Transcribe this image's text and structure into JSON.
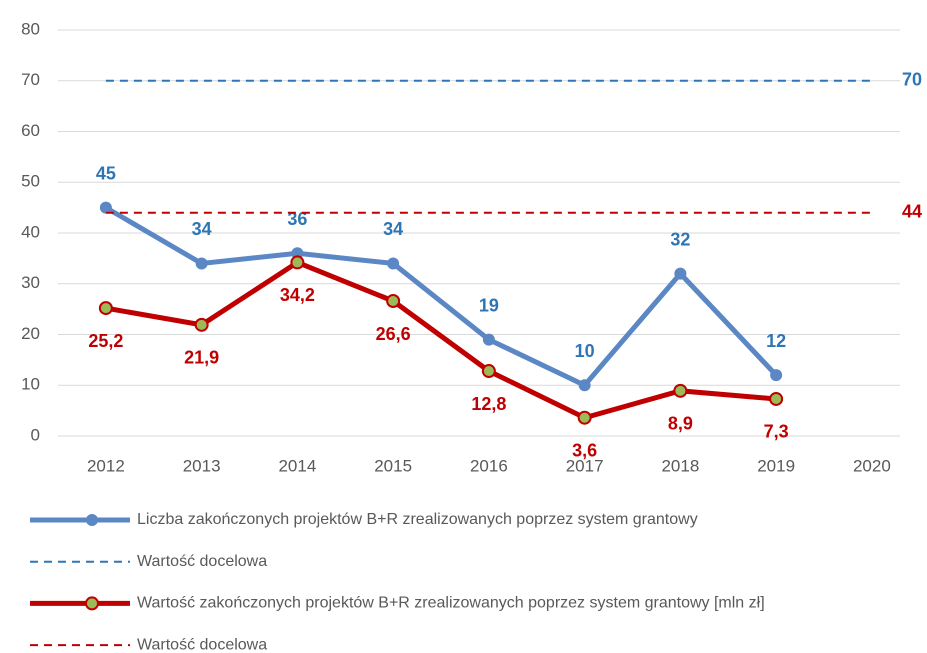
{
  "chart_data": {
    "type": "line",
    "categories": [
      "2012",
      "2013",
      "2014",
      "2015",
      "2016",
      "2017",
      "2018",
      "2019",
      "2020"
    ],
    "ylim": [
      0,
      80
    ],
    "yticks": [
      0,
      10,
      20,
      30,
      40,
      50,
      60,
      70,
      80
    ],
    "grid": true,
    "series": [
      {
        "name": "Liczba zakończonych projektów B+R zrealizowanych poprzez system grantowy",
        "color": "#5b87c5",
        "label_color": "#2e75b6",
        "style": "solid",
        "markers": true,
        "values": [
          45,
          34,
          36,
          34,
          19,
          10,
          32,
          12,
          null
        ]
      },
      {
        "name": "Wartość docelowa",
        "color": "#2e75b6",
        "label_color": "#2e75b6",
        "style": "dashed",
        "markers": false,
        "values": [
          70,
          70,
          70,
          70,
          70,
          70,
          70,
          70,
          70
        ]
      },
      {
        "name": "Wartość zakończonych projektów B+R zrealizowanych poprzez system grantowy [mln zł]",
        "color": "#c00000",
        "label_color": "#c00000",
        "style": "solid",
        "markers": true,
        "marker_fill": "#9bbb59",
        "values": [
          25.2,
          21.9,
          34.2,
          26.6,
          12.8,
          3.6,
          8.9,
          7.3,
          null
        ],
        "value_labels": [
          "25,2",
          "21,9",
          "34,2",
          "26,6",
          "12,8",
          "3,6",
          "8,9",
          "7,3",
          null
        ]
      },
      {
        "name": "Wartość docelowa",
        "color": "#c00000",
        "label_color": "#c00000",
        "style": "dashed",
        "markers": false,
        "values": [
          44,
          44,
          44,
          44,
          44,
          44,
          44,
          44,
          44
        ]
      }
    ]
  }
}
